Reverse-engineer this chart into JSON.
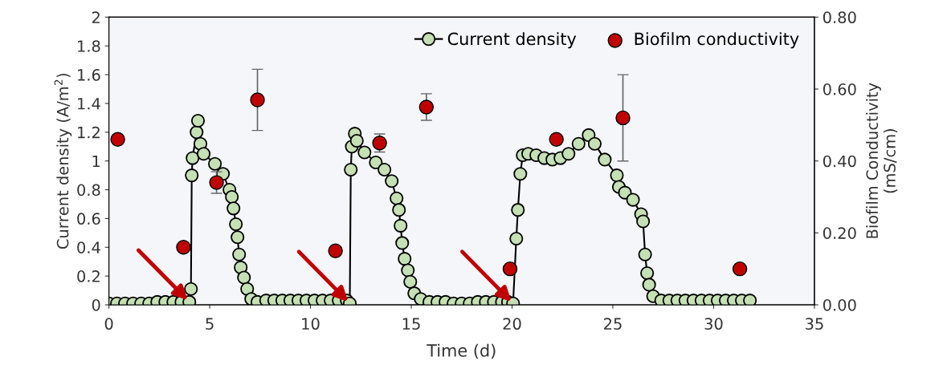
{
  "chart_data": {
    "type": "line",
    "xlabel": "Time (d)",
    "ylabel": "Current density (A/m$^{2}$)",
    "y2label": "Biofilm Conductivity\n(mS/cm)",
    "xlim": [
      0,
      35
    ],
    "xticks": [
      0,
      5,
      10,
      15,
      20,
      25,
      30,
      35
    ],
    "ylim": [
      0,
      2
    ],
    "yticks": [
      0,
      0.2,
      0.4,
      0.6,
      0.8,
      1,
      1.2,
      1.4,
      1.6,
      1.8,
      2
    ],
    "y2lim": [
      0,
      0.8
    ],
    "y2ticks": [
      {
        "value": 0,
        "label": "0.00"
      },
      {
        "value": 0.2,
        "label": "0.20"
      },
      {
        "value": 0.4,
        "label": "0.40"
      },
      {
        "value": 0.6,
        "label": "0.60"
      },
      {
        "value": 0.8,
        "label": "0.80"
      }
    ],
    "grid": false,
    "legend": "top right",
    "marker": "circle",
    "series": [
      {
        "name": "Current density",
        "color": "#c5e0b4",
        "line_style": "solid",
        "x": [
          0,
          0.4,
          0.8,
          1.2,
          1.6,
          2.0,
          2.4,
          2.8,
          3.2,
          3.6,
          3.99,
          4.07,
          4.11,
          4.15,
          4.35,
          4.42,
          4.54,
          4.7,
          5.26,
          5.66,
          5.98,
          6.1,
          6.18,
          6.3,
          6.38,
          6.46,
          6.54,
          6.7,
          6.86,
          7.06,
          7.37,
          7.8,
          8.2,
          8.6,
          9.0,
          9.4,
          9.8,
          10.2,
          10.6,
          11.0,
          11.4,
          11.8,
          11.95,
          12.0,
          12.05,
          12.2,
          12.3,
          12.68,
          13.24,
          13.67,
          14.03,
          14.27,
          14.39,
          14.47,
          14.55,
          14.67,
          14.83,
          14.95,
          15.15,
          15.47,
          15.9,
          16.3,
          16.7,
          17.1,
          17.5,
          17.9,
          18.3,
          18.7,
          19.1,
          19.5,
          19.8,
          20.05,
          20.21,
          20.29,
          20.41,
          20.53,
          20.8,
          21.2,
          21.6,
          22.0,
          22.4,
          22.8,
          23.3,
          23.8,
          24.1,
          24.6,
          25.2,
          25.3,
          25.6,
          26.0,
          26.4,
          26.5,
          26.6,
          26.7,
          26.8,
          27.0,
          27.4,
          27.8,
          28.2,
          28.6,
          29.0,
          29.4,
          29.8,
          30.2,
          30.6,
          31.0,
          31.4,
          31.8
        ],
        "values": [
          0.01,
          0.01,
          0.01,
          0.01,
          0.01,
          0.01,
          0.02,
          0.02,
          0.02,
          0.02,
          0.02,
          0.11,
          0.9,
          1.02,
          1.2,
          1.28,
          1.12,
          1.05,
          0.98,
          0.91,
          0.8,
          0.75,
          0.67,
          0.56,
          0.47,
          0.35,
          0.26,
          0.19,
          0.11,
          0.04,
          0.02,
          0.03,
          0.03,
          0.03,
          0.03,
          0.03,
          0.03,
          0.03,
          0.03,
          0.03,
          0.03,
          0.03,
          0.01,
          0.94,
          1.1,
          1.19,
          1.14,
          1.06,
          0.99,
          0.94,
          0.86,
          0.74,
          0.66,
          0.55,
          0.43,
          0.32,
          0.24,
          0.16,
          0.08,
          0.04,
          0.02,
          0.02,
          0.02,
          0.01,
          0.01,
          0.01,
          0.02,
          0.02,
          0.02,
          0.02,
          0.02,
          0.01,
          0.46,
          0.66,
          0.91,
          1.04,
          1.05,
          1.04,
          1.02,
          1.01,
          1.02,
          1.05,
          1.12,
          1.18,
          1.12,
          1.01,
          0.9,
          0.82,
          0.78,
          0.73,
          0.63,
          0.58,
          0.35,
          0.22,
          0.14,
          0.06,
          0.03,
          0.03,
          0.03,
          0.03,
          0.03,
          0.03,
          0.03,
          0.03,
          0.03,
          0.03,
          0.03,
          0.03
        ]
      },
      {
        "name": "Biofilm conductivity",
        "type": "scatter",
        "axis": "y2",
        "color": "#c00000",
        "x": [
          0.44,
          3.7,
          5.34,
          7.37,
          11.24,
          13.43,
          15.75,
          19.9,
          22.2,
          25.5,
          31.3
        ],
        "values": [
          0.46,
          0.16,
          0.34,
          0.57,
          0.15,
          0.45,
          0.55,
          0.1,
          0.46,
          0.52,
          0.1
        ],
        "errors": [
          null,
          null,
          0.03,
          0.085,
          null,
          0.025,
          0.037,
          null,
          null,
          0.12,
          null
        ]
      }
    ]
  }
}
